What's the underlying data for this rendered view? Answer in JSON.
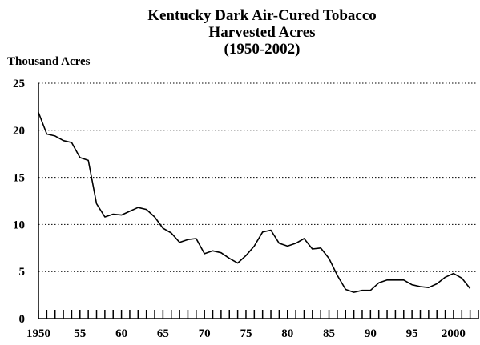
{
  "chart_data": {
    "type": "line",
    "title_lines": [
      "Kentucky Dark Air-Cured Tobacco",
      "Harvested Acres",
      "(1950-2002)"
    ],
    "ylabel": "Thousand Acres",
    "xlabel": "",
    "xlim": [
      1950,
      2003
    ],
    "ylim": [
      0,
      25
    ],
    "yticks": [
      0,
      5,
      10,
      15,
      20,
      25
    ],
    "xtick_labels": [
      "1950",
      "55",
      "60",
      "65",
      "70",
      "75",
      "80",
      "85",
      "90",
      "95",
      "2000"
    ],
    "xtick_values": [
      1950,
      1955,
      1960,
      1965,
      1970,
      1975,
      1980,
      1985,
      1990,
      1995,
      2000
    ],
    "grid": "horizontal-dotted",
    "series": [
      {
        "x": [
          1950,
          1951,
          1952,
          1953,
          1954,
          1955,
          1956,
          1957,
          1958,
          1959,
          1960,
          1961,
          1962,
          1963,
          1964,
          1965,
          1966,
          1967,
          1968,
          1969,
          1970,
          1971,
          1972,
          1973,
          1974,
          1975,
          1976,
          1977,
          1978,
          1979,
          1980,
          1981,
          1982,
          1983,
          1984,
          1985,
          1986,
          1987,
          1988,
          1989,
          1990,
          1991,
          1992,
          1993,
          1994,
          1995,
          1996,
          1997,
          1998,
          1999,
          2000,
          2001,
          2002
        ],
        "values": [
          21.9,
          19.6,
          19.4,
          18.9,
          18.7,
          17.1,
          16.8,
          12.2,
          10.8,
          11.1,
          11.0,
          11.4,
          11.8,
          11.6,
          10.8,
          9.6,
          9.1,
          8.1,
          8.4,
          8.5,
          6.9,
          7.2,
          7.0,
          6.4,
          5.9,
          6.7,
          7.7,
          9.2,
          9.4,
          8.0,
          7.7,
          8.0,
          8.5,
          7.4,
          7.5,
          6.4,
          4.6,
          3.1,
          2.8,
          3.0,
          3.0,
          3.8,
          4.1,
          4.1,
          4.1,
          3.6,
          3.4,
          3.3,
          3.7,
          4.4,
          4.8,
          4.3,
          3.2
        ],
        "color": "#000000"
      }
    ]
  }
}
